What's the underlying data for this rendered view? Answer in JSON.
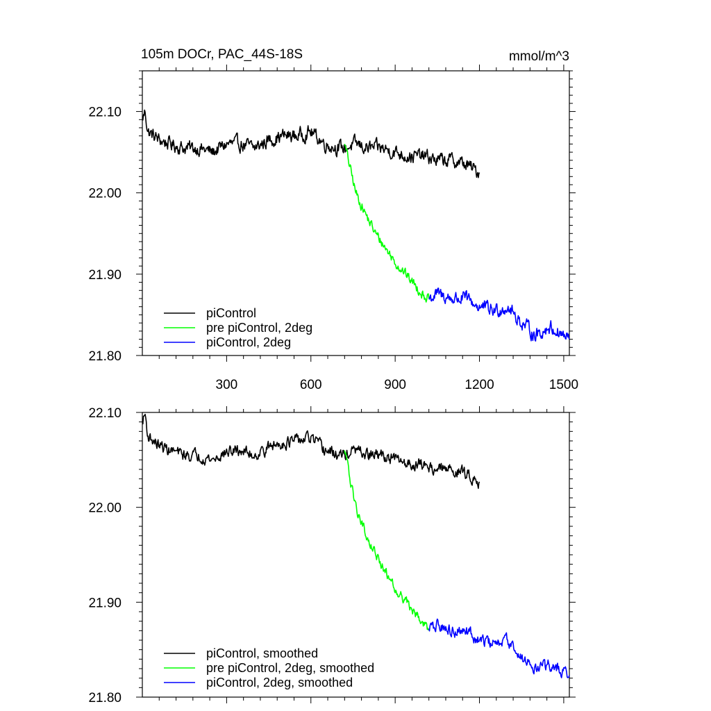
{
  "chart_data": [
    {
      "type": "line",
      "title": "105m DOCr, PAC_44S-18S",
      "units": "mmol/m^3",
      "xlim": [
        0,
        1520
      ],
      "ylim": [
        21.8,
        22.15
      ],
      "xticks": [
        300,
        600,
        900,
        1200,
        1500
      ],
      "xtick_labels": [
        "300",
        "600",
        "900",
        "1200",
        "1500"
      ],
      "yticks": [
        21.8,
        21.9,
        22.0,
        22.1
      ],
      "ytick_labels": [
        "21.80",
        "21.90",
        "22.00",
        "22.10"
      ],
      "legend": {
        "placement": "bottom-left",
        "entries": [
          "piControl",
          "pre piControl, 2deg",
          "piControl, 2deg"
        ]
      },
      "series": [
        {
          "name": "piControl",
          "color": "#000000",
          "noise": 0.007,
          "x": [
            0,
            10,
            20,
            60,
            100,
            150,
            200,
            250,
            300,
            350,
            400,
            450,
            500,
            550,
            600,
            650,
            700,
            720,
            760,
            800,
            850,
            900,
            950,
            1000,
            1050,
            1100,
            1150,
            1200
          ],
          "y": [
            22.09,
            22.1,
            22.075,
            22.065,
            22.06,
            22.055,
            22.055,
            22.05,
            22.06,
            22.06,
            22.055,
            22.065,
            22.07,
            22.07,
            22.075,
            22.06,
            22.055,
            22.055,
            22.06,
            22.055,
            22.055,
            22.05,
            22.045,
            22.045,
            22.04,
            22.04,
            22.035,
            22.025
          ]
        },
        {
          "name": "pre piControl, 2deg",
          "color": "#00ff00",
          "noise": 0.005,
          "x": [
            720,
            740,
            760,
            780,
            800,
            830,
            860,
            900,
            950,
            1000,
            1020
          ],
          "y": [
            22.06,
            22.03,
            22.0,
            21.985,
            21.97,
            21.95,
            21.935,
            21.915,
            21.895,
            21.875,
            21.87
          ]
        },
        {
          "name": "piControl, 2deg",
          "color": "#0000ff",
          "noise": 0.007,
          "x": [
            1020,
            1050,
            1100,
            1150,
            1200,
            1250,
            1300,
            1350,
            1400,
            1450,
            1500,
            1520
          ],
          "y": [
            21.87,
            21.875,
            21.87,
            21.87,
            21.86,
            21.855,
            21.86,
            21.84,
            21.825,
            21.835,
            21.825,
            21.82
          ]
        }
      ]
    },
    {
      "type": "line",
      "xlim": [
        0,
        1520
      ],
      "ylim": [
        21.8,
        22.1
      ],
      "xticks": [
        300,
        600,
        900,
        1200,
        1500
      ],
      "yticks": [
        21.8,
        21.9,
        22.0,
        22.1
      ],
      "ytick_labels": [
        "21.80",
        "21.90",
        "22.00",
        "22.10"
      ],
      "legend": {
        "placement": "bottom-left",
        "entries": [
          "piControl, smoothed",
          "pre piControl, 2deg, smoothed",
          "piControl, 2deg, smoothed"
        ]
      },
      "series": [
        {
          "name": "piControl, smoothed",
          "color": "#000000",
          "noise": 0.005,
          "x": [
            0,
            10,
            20,
            60,
            100,
            150,
            200,
            250,
            300,
            350,
            400,
            450,
            500,
            550,
            600,
            650,
            700,
            720,
            760,
            800,
            850,
            900,
            950,
            1000,
            1050,
            1100,
            1150,
            1200
          ],
          "y": [
            22.09,
            22.098,
            22.075,
            22.065,
            22.06,
            22.055,
            22.055,
            22.05,
            22.058,
            22.06,
            22.055,
            22.063,
            22.068,
            22.07,
            22.073,
            22.06,
            22.055,
            22.055,
            22.06,
            22.055,
            22.055,
            22.05,
            22.046,
            22.045,
            22.04,
            22.04,
            22.036,
            22.027
          ]
        },
        {
          "name": "pre piControl, 2deg, smoothed",
          "color": "#00ff00",
          "noise": 0.004,
          "x": [
            720,
            740,
            760,
            780,
            800,
            830,
            860,
            900,
            950,
            1000,
            1020
          ],
          "y": [
            22.06,
            22.03,
            22.0,
            21.985,
            21.97,
            21.95,
            21.935,
            21.915,
            21.897,
            21.877,
            21.872
          ]
        },
        {
          "name": "piControl, 2deg, smoothed",
          "color": "#0000ff",
          "noise": 0.005,
          "x": [
            1020,
            1050,
            1100,
            1150,
            1200,
            1250,
            1300,
            1350,
            1400,
            1450,
            1500,
            1520
          ],
          "y": [
            21.872,
            21.876,
            21.87,
            21.87,
            21.86,
            21.856,
            21.86,
            21.842,
            21.828,
            21.835,
            21.826,
            21.823
          ]
        }
      ]
    }
  ]
}
